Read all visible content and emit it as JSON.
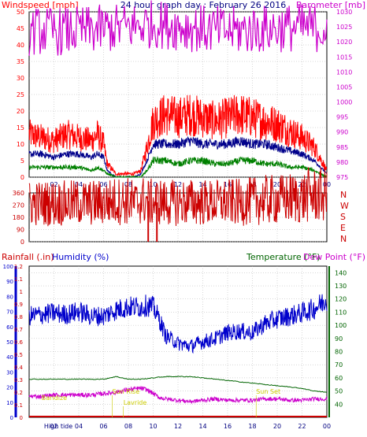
{
  "colors": {
    "wind": "#ff0000",
    "gust_series": "#ff0000",
    "avg_series": "#00008b",
    "low_series": "#008000",
    "baro": "#cc00cc",
    "dir": "#cc0000",
    "rain": "#cc0000",
    "humidity": "#0000cc",
    "temp": "#006400",
    "dew": "#cc00cc",
    "annot": "#cccc00",
    "grid": "#b0b0b0"
  },
  "chart_data": [
    {
      "type": "line",
      "title": "24 hour graph day : February 26 2016",
      "ylabel": "Windspeed [mph]",
      "y2label": "Barometer [mb]",
      "x_tick_labels": [
        "02",
        "04",
        "06",
        "08",
        "10",
        "12",
        "14",
        "16",
        "18",
        "20",
        "22",
        "00"
      ],
      "y_tick_labels": [
        "0",
        "5",
        "10",
        "15",
        "20",
        "25",
        "30",
        "35",
        "40",
        "45",
        "50"
      ],
      "y2_tick_labels": [
        "975",
        "980",
        "985",
        "990",
        "995",
        "1000",
        "1005",
        "1010",
        "1015",
        "1020",
        "1025",
        "1030"
      ],
      "xlim": [
        0,
        24
      ],
      "ylim": [
        0,
        50
      ],
      "y2lim": [
        975,
        1030
      ],
      "grid": true,
      "series": [
        {
          "axis": "y",
          "x": [
            0,
            1,
            2,
            3,
            4,
            5,
            5.5,
            6,
            6.3,
            7,
            7.6,
            7.8,
            8,
            8.5,
            9,
            9.5,
            10,
            11,
            12,
            13,
            14,
            15,
            16,
            17,
            18,
            19,
            20,
            21,
            22,
            23,
            24
          ],
          "y": [
            13,
            12,
            11,
            13,
            12,
            11,
            13,
            10,
            4,
            1,
            1,
            1,
            1,
            1,
            2,
            9,
            17,
            19,
            18,
            19,
            18,
            17,
            18,
            19,
            18,
            17,
            16,
            14,
            12,
            9,
            2
          ]
        },
        {
          "axis": "y",
          "x": [
            0,
            1,
            2,
            3,
            4,
            5,
            5.5,
            6,
            6.3,
            7,
            7.6,
            7.8,
            8,
            8.5,
            9,
            9.5,
            10,
            11,
            12,
            13,
            14,
            15,
            16,
            17,
            18,
            19,
            20,
            21,
            22,
            23,
            24
          ],
          "y": [
            7,
            7,
            6,
            7,
            7,
            6,
            7,
            6,
            2,
            0,
            0,
            0,
            0,
            0,
            1,
            5,
            10,
            10,
            10,
            11,
            10,
            10,
            10,
            11,
            10,
            10,
            9,
            8,
            7,
            5,
            1
          ]
        },
        {
          "axis": "y",
          "x": [
            0,
            1,
            2,
            3,
            4,
            5,
            5.5,
            6,
            6.3,
            7,
            7.6,
            7.8,
            8,
            8.5,
            9,
            9.5,
            10,
            11,
            12,
            13,
            14,
            15,
            16,
            17,
            18,
            19,
            20,
            21,
            22,
            23,
            24
          ],
          "y": [
            3,
            3,
            3,
            3,
            3,
            2,
            3,
            2,
            1,
            0,
            0,
            0,
            0,
            0,
            0,
            2,
            5,
            5,
            4,
            5,
            5,
            4,
            4,
            5,
            5,
            4,
            4,
            3,
            3,
            2,
            0
          ]
        },
        {
          "axis": "y2",
          "x": [
            0,
            1,
            2,
            3,
            4,
            5,
            6,
            7,
            8,
            9,
            10,
            11,
            12,
            13,
            14,
            15,
            16,
            17,
            18,
            19,
            20,
            21,
            22,
            23,
            24
          ],
          "y": [
            1023.5,
            1023.6,
            1023.5,
            1023.5,
            1023.7,
            1024,
            1024.3,
            1024.6,
            1025,
            1025.5,
            1026,
            1025.7,
            1025.3,
            1024.8,
            1024.3,
            1023.9,
            1023.7,
            1023.8,
            1024,
            1024.2,
            1024.5,
            1024.7,
            1024.8,
            1024.6,
            1024.5
          ]
        }
      ]
    },
    {
      "type": "scatter",
      "ylabel_letters": [
        "N",
        "W",
        "S",
        "E",
        "N"
      ],
      "y_tick_labels": [
        "360",
        "270",
        "180",
        "90",
        "0"
      ],
      "xlim": [
        0,
        24
      ],
      "ylim": [
        0,
        360
      ],
      "series": [
        {
          "x": [
            0,
            1,
            2,
            3,
            4,
            5,
            6,
            7,
            8,
            8.6,
            8.9,
            9,
            9.5,
            10,
            10.5,
            11,
            12,
            13,
            14,
            15,
            16,
            17,
            18,
            19,
            20,
            21,
            22,
            22.5,
            23,
            24
          ],
          "y": [
            285,
            282,
            286,
            283,
            288,
            286,
            290,
            300,
            302,
            280,
            300,
            310,
            295,
            290,
            298,
            285,
            288,
            292,
            290,
            288,
            292,
            290,
            300,
            308,
            310,
            320,
            322,
            345,
            340,
            345
          ]
        },
        {
          "x": [
            9.6,
            9.6,
            9.61
          ],
          "y": [
            0,
            290,
            300
          ]
        },
        {
          "x": [
            10.3,
            10.3,
            10.31
          ],
          "y": [
            0,
            280,
            290
          ]
        }
      ]
    },
    {
      "type": "line",
      "ylabel": "Rainfall (.in)",
      "y1label": "Humidity (%)",
      "y2label": "Temperature (°F)",
      "y3label": "Dew Point (°F)",
      "x_tick_labels": [
        "02",
        "04",
        "06",
        "08",
        "10",
        "12",
        "14",
        "16",
        "18",
        "20",
        "22",
        "00"
      ],
      "rain_ticks": [
        "0",
        "0.1",
        "0.2",
        "0.3",
        "0.4",
        "0.5",
        "0.6",
        "0.7",
        "0.8",
        "0.9",
        "1",
        "1.1",
        "1.2"
      ],
      "hum_ticks": [
        "0",
        "10",
        "20",
        "30",
        "40",
        "50",
        "60",
        "70",
        "80",
        "90",
        "100"
      ],
      "temp_ticks": [
        "40",
        "50",
        "60",
        "70",
        "80",
        "90",
        "100",
        "110",
        "120",
        "130",
        "140"
      ],
      "xlim": [
        0,
        24
      ],
      "hum_lim": [
        0,
        100
      ],
      "temp_lim": [
        30,
        145
      ],
      "series": [
        {
          "axis": "humidity",
          "x": [
            0,
            1,
            2,
            3,
            4,
            5,
            6,
            7,
            8,
            9,
            9.5,
            10,
            10.5,
            11,
            12,
            13,
            14,
            15,
            16,
            17,
            18,
            19,
            20,
            21,
            22,
            23,
            24
          ],
          "y": [
            67,
            68,
            69,
            68,
            70,
            67,
            67,
            71,
            73,
            73,
            74,
            73,
            65,
            54,
            49,
            47,
            50,
            52,
            56,
            57,
            56,
            62,
            65,
            67,
            69,
            72,
            78
          ]
        },
        {
          "axis": "temp",
          "x": [
            0,
            1,
            2,
            3,
            4,
            5,
            6,
            7,
            8,
            9,
            10,
            11,
            12,
            13,
            14,
            15,
            16,
            17,
            18,
            19,
            20,
            21,
            22,
            23,
            24
          ],
          "y": [
            59,
            59,
            59,
            59,
            59,
            59,
            59,
            61,
            59,
            59,
            60,
            61,
            61,
            61,
            60,
            59,
            58,
            57,
            56,
            55,
            54,
            53,
            52,
            50,
            49
          ]
        },
        {
          "axis": "temp",
          "x": [
            0,
            1,
            2,
            3,
            4,
            5,
            6,
            7,
            7.5,
            8,
            9,
            9.5,
            10,
            10.5,
            11,
            12,
            13,
            14,
            15,
            16,
            17,
            18,
            19,
            20,
            21,
            22,
            23,
            24
          ],
          "y": [
            46,
            46,
            47,
            47,
            47,
            47,
            48,
            49,
            50,
            51,
            52,
            51,
            48,
            45,
            44,
            43,
            42,
            43,
            44,
            43,
            43,
            43,
            44,
            44,
            43,
            43,
            44,
            44
          ]
        },
        {
          "axis": "rain",
          "x": [
            0,
            24
          ],
          "y": [
            0,
            0
          ]
        }
      ],
      "annotations": [
        {
          "label": "Baridize",
          "x": 1.0
        },
        {
          "label": "Sun Rise",
          "x": 6.7
        },
        {
          "label": "Lavride",
          "x": 7.6
        },
        {
          "label": "Sun Set",
          "x": 18.3
        },
        {
          "label": "High tide",
          "x": 1.2
        }
      ]
    }
  ]
}
